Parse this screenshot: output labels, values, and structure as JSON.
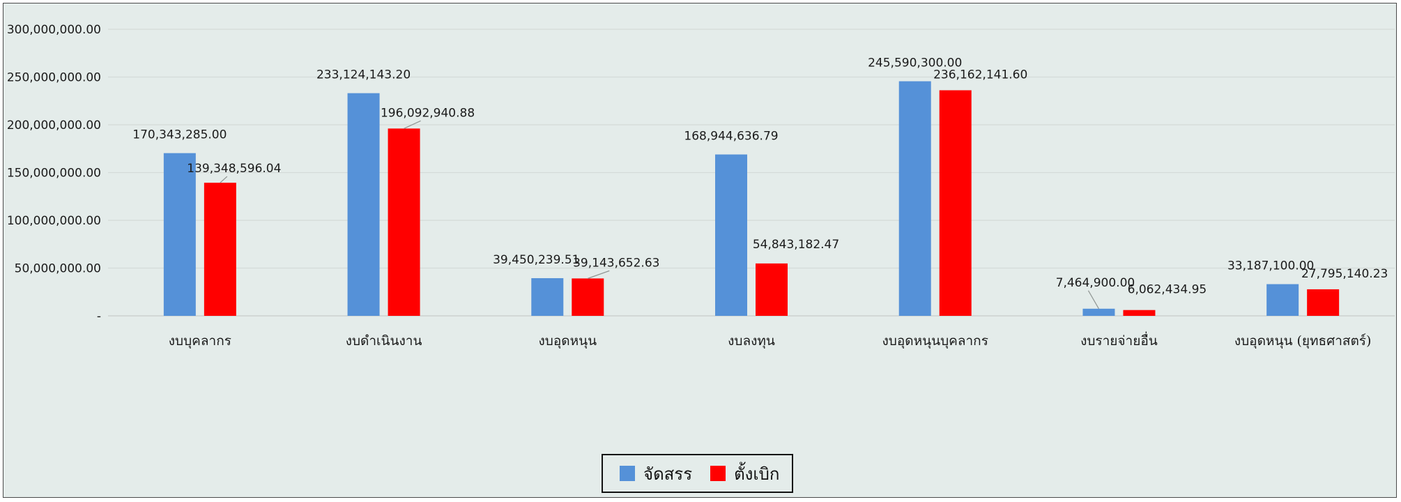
{
  "chart_data": {
    "type": "bar",
    "categories": [
      "งบบุคลากร",
      "งบดำเนินงาน",
      "งบอุดหนุน",
      "งบลงทุน",
      "งบอุดหนุนบุคลากร",
      "งบรายจ่ายอื่น",
      "งบอุดหนุน (ยุทธศาสตร์)"
    ],
    "series": [
      {
        "name": "จัดสรร",
        "color": "#5591d8",
        "values": [
          170343285.0,
          233124143.2,
          39450239.51,
          168944636.79,
          245590300.0,
          7464900.0,
          33187100.0
        ],
        "labels": [
          "170,343,285.00",
          "233,124,143.20",
          "39,450,239.51",
          "168,944,636.79",
          "245,590,300.00",
          "7,464,900.00",
          "33,187,100.00"
        ]
      },
      {
        "name": "ตั้งเบิก",
        "color": "#ff0000",
        "values": [
          139348596.04,
          196092940.88,
          39143652.63,
          54843182.47,
          236162141.6,
          6062434.95,
          27795140.23
        ],
        "labels": [
          "139,348,596.04",
          "196,092,940.88",
          "39,143,652.63",
          "54,843,182.47",
          "236,162,141.60",
          "6,062,434.95",
          "27,795,140.23"
        ]
      }
    ],
    "ylim": [
      0,
      300000000
    ],
    "yticks": [
      0,
      50000000,
      100000000,
      150000000,
      200000000,
      250000000,
      300000000
    ],
    "ytick_labels": [
      "-",
      "50,000,000.00",
      "100,000,000.00",
      "150,000,000.00",
      "200,000,000.00",
      "250,000,000.00",
      "300,000,000.00"
    ],
    "grid": true,
    "legend_position": "bottom",
    "title": "",
    "xlabel": "",
    "ylabel": ""
  }
}
